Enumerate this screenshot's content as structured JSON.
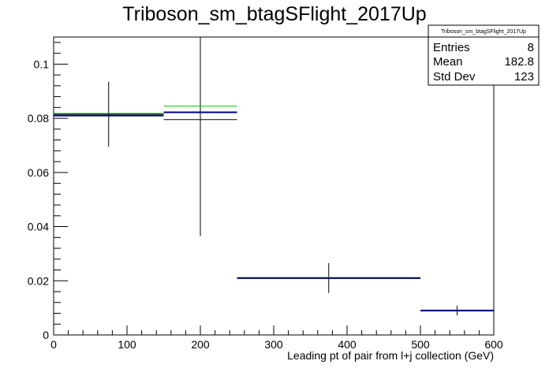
{
  "chart_data": {
    "type": "histogram",
    "title": "Triboson_sm_btagSFlight_2017Up",
    "xlabel": "Leading pt of pair from l+j collection (GeV)",
    "ylabel": "",
    "xlim": [
      0,
      600
    ],
    "ylim": [
      0,
      0.11
    ],
    "x_ticks": [
      "0",
      "100",
      "200",
      "300",
      "400",
      "500",
      "600"
    ],
    "y_ticks": [
      "0",
      "0.02",
      "0.04",
      "0.06",
      "0.08",
      "0.1"
    ],
    "bins": [
      {
        "low": 0,
        "high": 150
      },
      {
        "low": 150,
        "high": 250
      },
      {
        "low": 250,
        "high": 500
      },
      {
        "low": 500,
        "high": 600
      }
    ],
    "series": [
      {
        "color": "#000000",
        "values": [
          0.0815,
          0.0795,
          0.021,
          0.009
        ],
        "errors_up": [
          0.0935,
          0.11,
          0.0265,
          0.0108
        ],
        "errors_down": [
          0.0695,
          0.0365,
          0.0155,
          0.0072
        ]
      },
      {
        "color": "#00cc00",
        "values": [
          0.0818,
          0.0845,
          0.0212,
          0.0092
        ]
      },
      {
        "color": "#000080",
        "values": [
          0.081,
          0.0822,
          0.021,
          0.009
        ]
      }
    ],
    "stats": {
      "title": "Triboson_sm_btagSFlight_2017Up",
      "rows": [
        {
          "label": "Entries",
          "value": "8"
        },
        {
          "label": "Mean",
          "value": "182.8"
        },
        {
          "label": "Std Dev",
          "value": "123"
        }
      ]
    }
  }
}
